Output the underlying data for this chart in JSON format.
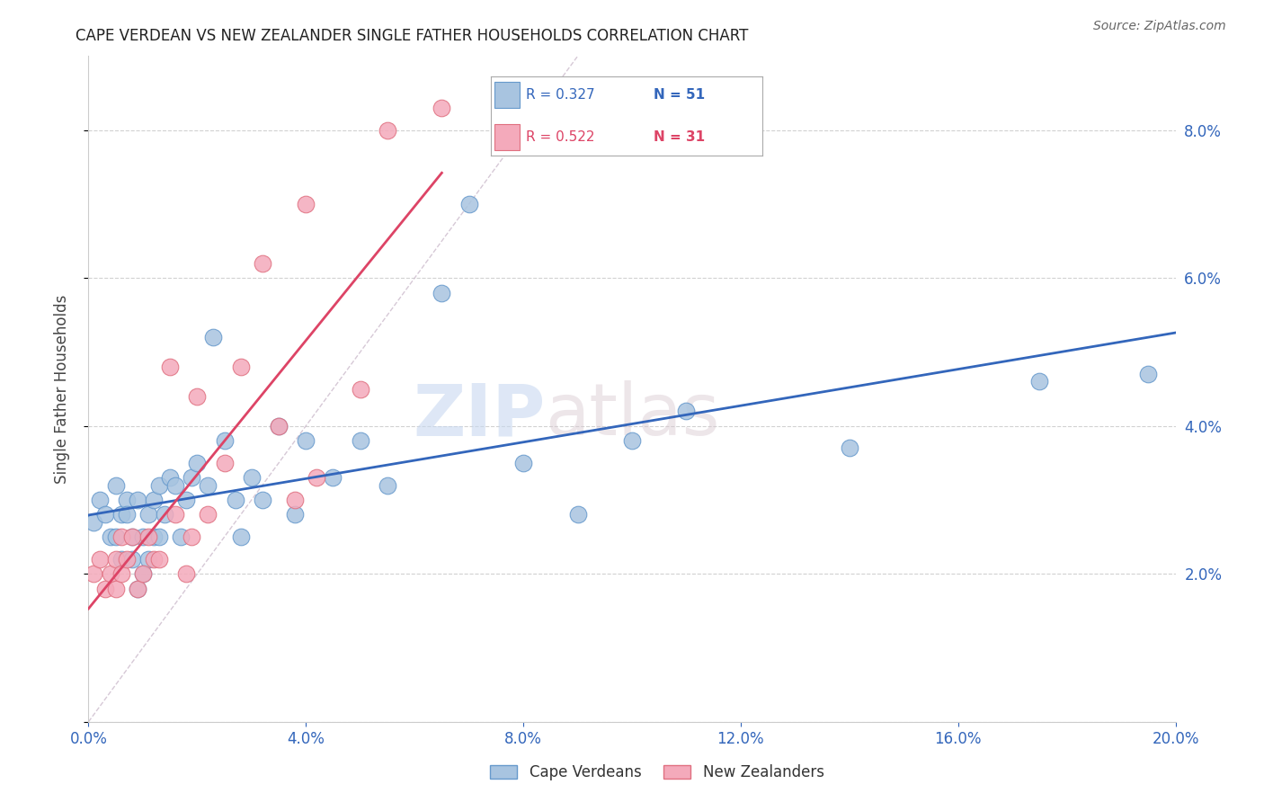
{
  "title": "CAPE VERDEAN VS NEW ZEALANDER SINGLE FATHER HOUSEHOLDS CORRELATION CHART",
  "source": "Source: ZipAtlas.com",
  "ylabel": "Single Father Households",
  "xlim": [
    0.0,
    0.2
  ],
  "ylim": [
    0.0,
    0.09
  ],
  "xticks": [
    0.0,
    0.04,
    0.08,
    0.12,
    0.16,
    0.2
  ],
  "yticks": [
    0.0,
    0.02,
    0.04,
    0.06,
    0.08
  ],
  "ytick_labels": [
    "",
    "2.0%",
    "4.0%",
    "6.0%",
    "8.0%"
  ],
  "xtick_labels": [
    "0.0%",
    "4.0%",
    "8.0%",
    "12.0%",
    "16.0%",
    "20.0%"
  ],
  "blue_color": "#A8C4E0",
  "pink_color": "#F4AABB",
  "blue_edge": "#6699CC",
  "pink_edge": "#E07080",
  "trend_blue": "#3366BB",
  "trend_pink": "#DD4466",
  "label_blue": "Cape Verdeans",
  "label_pink": "New Zealanders",
  "watermark_zip": "ZIP",
  "watermark_atlas": "atlas",
  "blue_R": 0.327,
  "blue_N": 51,
  "pink_R": 0.522,
  "pink_N": 31,
  "blue_x": [
    0.001,
    0.002,
    0.003,
    0.004,
    0.005,
    0.005,
    0.006,
    0.006,
    0.007,
    0.007,
    0.008,
    0.008,
    0.009,
    0.009,
    0.01,
    0.01,
    0.011,
    0.011,
    0.012,
    0.012,
    0.013,
    0.013,
    0.014,
    0.015,
    0.016,
    0.017,
    0.018,
    0.019,
    0.02,
    0.022,
    0.023,
    0.025,
    0.027,
    0.028,
    0.03,
    0.032,
    0.035,
    0.038,
    0.04,
    0.045,
    0.05,
    0.055,
    0.065,
    0.07,
    0.08,
    0.09,
    0.1,
    0.11,
    0.14,
    0.175,
    0.195
  ],
  "blue_y": [
    0.027,
    0.03,
    0.028,
    0.025,
    0.032,
    0.025,
    0.028,
    0.022,
    0.03,
    0.028,
    0.025,
    0.022,
    0.03,
    0.018,
    0.025,
    0.02,
    0.028,
    0.022,
    0.03,
    0.025,
    0.032,
    0.025,
    0.028,
    0.033,
    0.032,
    0.025,
    0.03,
    0.033,
    0.035,
    0.032,
    0.052,
    0.038,
    0.03,
    0.025,
    0.033,
    0.03,
    0.04,
    0.028,
    0.038,
    0.033,
    0.038,
    0.032,
    0.058,
    0.07,
    0.035,
    0.028,
    0.038,
    0.042,
    0.037,
    0.046,
    0.047
  ],
  "pink_x": [
    0.001,
    0.002,
    0.003,
    0.004,
    0.005,
    0.005,
    0.006,
    0.006,
    0.007,
    0.008,
    0.009,
    0.01,
    0.011,
    0.012,
    0.013,
    0.015,
    0.016,
    0.018,
    0.019,
    0.02,
    0.022,
    0.025,
    0.028,
    0.032,
    0.035,
    0.038,
    0.04,
    0.042,
    0.05,
    0.055,
    0.065
  ],
  "pink_y": [
    0.02,
    0.022,
    0.018,
    0.02,
    0.022,
    0.018,
    0.02,
    0.025,
    0.022,
    0.025,
    0.018,
    0.02,
    0.025,
    0.022,
    0.022,
    0.048,
    0.028,
    0.02,
    0.025,
    0.044,
    0.028,
    0.035,
    0.048,
    0.062,
    0.04,
    0.03,
    0.07,
    0.033,
    0.045,
    0.08,
    0.083
  ]
}
